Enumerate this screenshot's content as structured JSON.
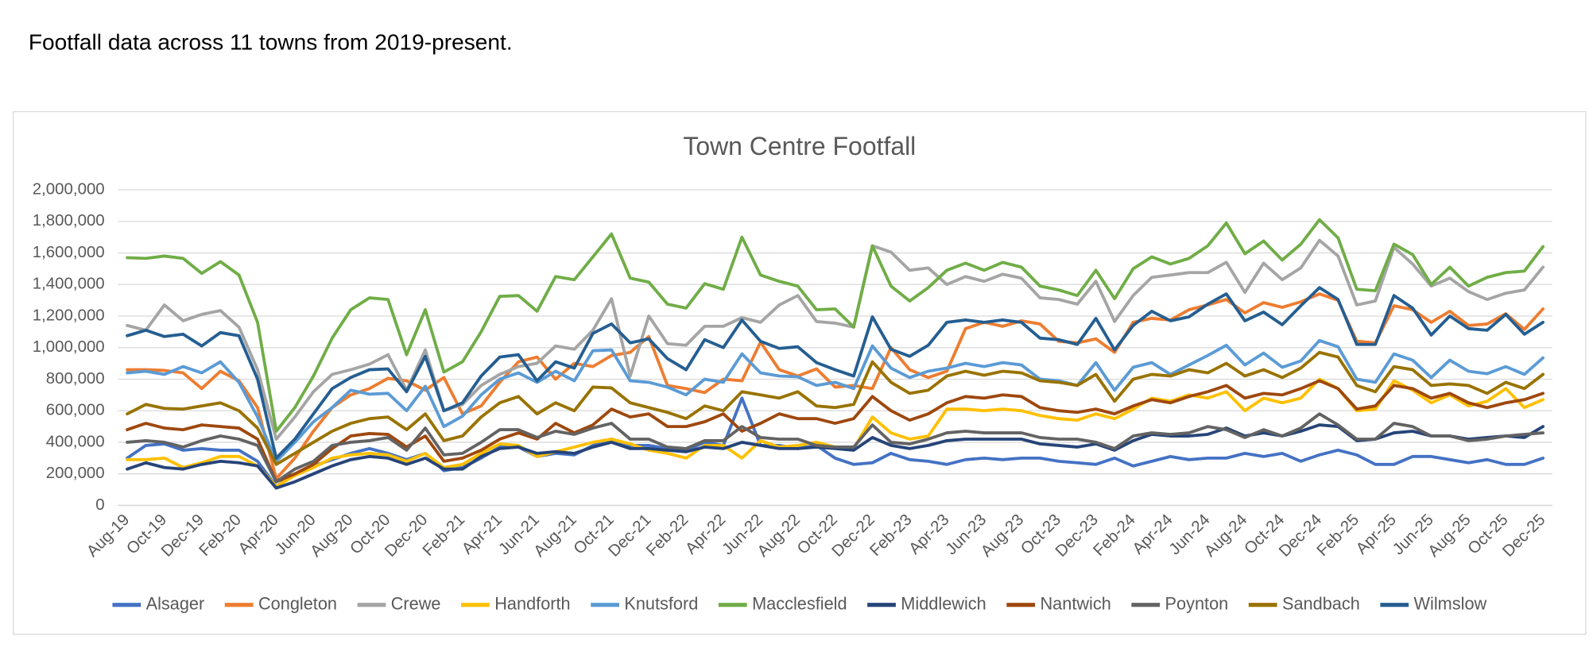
{
  "heading": "Footfall data across 11 towns from 2019-present.",
  "chart_data": {
    "type": "line",
    "title": "Town Centre Footfall",
    "categories": [
      "Aug-19",
      null,
      "Oct-19",
      null,
      "Dec-19",
      null,
      "Feb-20",
      null,
      "Apr-20",
      null,
      "Jun-20",
      null,
      "Aug-20",
      null,
      "Oct-20",
      null,
      "Dec-20",
      null,
      "Feb-21",
      null,
      "Apr-21",
      null,
      "Jun-21",
      null,
      "Aug-21",
      null,
      "Oct-21",
      null,
      "Dec-21",
      null,
      "Feb-22",
      null,
      "Apr-22",
      null,
      "Jun-22",
      null,
      "Aug-22",
      null,
      "Oct-22",
      null,
      "Dec-22",
      null,
      "Feb-23",
      null,
      "Apr-23",
      null,
      "Jun-23",
      null,
      "Aug-23",
      null,
      "Oct-23",
      null,
      "Dec-23",
      null,
      "Feb-24",
      null,
      "Apr-24",
      null,
      "Jun-24",
      null,
      "Aug-24",
      null,
      "Oct-24",
      null,
      "Dec-24",
      null,
      "Feb-25",
      null,
      "Apr-25",
      null,
      "Jun-25",
      null,
      "Aug-25",
      null,
      "Oct-25",
      null,
      "Dec-25"
    ],
    "ylim": [
      0,
      2000000
    ],
    "yticks": [
      0,
      {
        "value": 200000,
        "label": "200,000"
      },
      {
        "value": 400000,
        "label": "400,000"
      },
      {
        "value": 600000,
        "label": "600,000"
      },
      {
        "value": 800000,
        "label": "800,000"
      },
      {
        "value": 1000000,
        "label": "1,000,000"
      },
      {
        "value": 1200000,
        "label": "1,200,000"
      },
      {
        "value": 1400000,
        "label": "1,400,000"
      },
      {
        "value": 1600000,
        "label": "1,600,000"
      },
      {
        "value": 1800000,
        "label": "1,800,000"
      },
      {
        "value": 2000000,
        "label": "2,000,000"
      }
    ],
    "grid": true,
    "legend": "bottom",
    "series": [
      {
        "name": "Alsager",
        "color": "#4472c4",
        "values": [
          300000,
          380000,
          390000,
          350000,
          360000,
          350000,
          350000,
          280000,
          120000,
          200000,
          250000,
          290000,
          330000,
          360000,
          330000,
          290000,
          330000,
          220000,
          240000,
          300000,
          370000,
          370000,
          310000,
          330000,
          320000,
          380000,
          420000,
          380000,
          380000,
          360000,
          350000,
          400000,
          380000,
          680000,
          380000,
          380000,
          360000,
          380000,
          300000,
          260000,
          270000,
          330000,
          290000,
          280000,
          260000,
          290000,
          300000,
          290000,
          300000,
          300000,
          280000,
          270000,
          260000,
          300000,
          250000,
          280000,
          310000,
          290000,
          300000,
          300000,
          330000,
          310000,
          330000,
          280000,
          320000,
          350000,
          320000,
          260000,
          260000,
          310000,
          310000,
          290000,
          270000,
          290000,
          260000,
          260000,
          300000
        ]
      },
      {
        "name": "Congleton",
        "color": "#ed7d31",
        "values": [
          860000,
          860000,
          855000,
          840000,
          740000,
          850000,
          790000,
          620000,
          170000,
          300000,
          470000,
          620000,
          700000,
          740000,
          805000,
          790000,
          730000,
          810000,
          580000,
          630000,
          780000,
          910000,
          940000,
          800000,
          900000,
          880000,
          950000,
          970000,
          1070000,
          760000,
          740000,
          715000,
          800000,
          790000,
          1035000,
          860000,
          820000,
          865000,
          750000,
          760000,
          740000,
          1000000,
          860000,
          810000,
          850000,
          1120000,
          1160000,
          1135000,
          1170000,
          1150000,
          1040000,
          1030000,
          1055000,
          970000,
          1160000,
          1185000,
          1175000,
          1240000,
          1270000,
          1305000,
          1220000,
          1285000,
          1255000,
          1290000,
          1340000,
          1300000,
          1040000,
          1030000,
          1265000,
          1240000,
          1160000,
          1230000,
          1140000,
          1150000,
          1215000,
          1115000,
          1245000
        ]
      },
      {
        "name": "Crewe",
        "color": "#a5a5a5",
        "values": [
          1140000,
          1110000,
          1270000,
          1170000,
          1210000,
          1235000,
          1130000,
          860000,
          420000,
          560000,
          720000,
          830000,
          860000,
          895000,
          955000,
          730000,
          985000,
          600000,
          640000,
          760000,
          830000,
          880000,
          900000,
          1010000,
          990000,
          1110000,
          1310000,
          820000,
          1200000,
          1025000,
          1015000,
          1135000,
          1135000,
          1190000,
          1160000,
          1270000,
          1330000,
          1165000,
          1155000,
          1130000,
          1645000,
          1605000,
          1490000,
          1505000,
          1400000,
          1450000,
          1420000,
          1465000,
          1440000,
          1315000,
          1305000,
          1275000,
          1420000,
          1165000,
          1330000,
          1445000,
          1460000,
          1475000,
          1475000,
          1540000,
          1350000,
          1535000,
          1430000,
          1505000,
          1680000,
          1580000,
          1270000,
          1295000,
          1635000,
          1530000,
          1390000,
          1440000,
          1355000,
          1305000,
          1345000,
          1365000,
          1510000
        ]
      },
      {
        "name": "Handforth",
        "color": "#ffc000",
        "values": [
          290000,
          290000,
          300000,
          240000,
          270000,
          310000,
          310000,
          250000,
          120000,
          190000,
          240000,
          300000,
          320000,
          330000,
          320000,
          280000,
          330000,
          240000,
          260000,
          330000,
          390000,
          380000,
          310000,
          340000,
          370000,
          400000,
          420000,
          390000,
          350000,
          330000,
          300000,
          380000,
          380000,
          300000,
          410000,
          370000,
          380000,
          400000,
          370000,
          360000,
          560000,
          460000,
          420000,
          440000,
          610000,
          610000,
          600000,
          610000,
          600000,
          570000,
          550000,
          540000,
          580000,
          550000,
          610000,
          680000,
          660000,
          700000,
          680000,
          720000,
          600000,
          680000,
          650000,
          680000,
          800000,
          740000,
          600000,
          610000,
          790000,
          730000,
          650000,
          700000,
          630000,
          660000,
          740000,
          620000,
          670000
        ]
      },
      {
        "name": "Knutsford",
        "color": "#5b9bd5",
        "values": [
          840000,
          850000,
          830000,
          880000,
          840000,
          910000,
          780000,
          560000,
          280000,
          400000,
          530000,
          620000,
          730000,
          705000,
          710000,
          600000,
          755000,
          500000,
          565000,
          700000,
          800000,
          840000,
          780000,
          850000,
          790000,
          980000,
          985000,
          790000,
          780000,
          750000,
          700000,
          800000,
          780000,
          960000,
          840000,
          820000,
          815000,
          760000,
          780000,
          740000,
          1010000,
          870000,
          810000,
          850000,
          870000,
          900000,
          880000,
          905000,
          890000,
          800000,
          790000,
          760000,
          905000,
          730000,
          875000,
          905000,
          830000,
          890000,
          950000,
          1015000,
          890000,
          965000,
          875000,
          915000,
          1045000,
          1005000,
          800000,
          780000,
          960000,
          920000,
          810000,
          920000,
          850000,
          835000,
          880000,
          830000,
          935000
        ]
      },
      {
        "name": "Macclesfield",
        "color": "#70ad47",
        "values": [
          1570000,
          1565000,
          1580000,
          1565000,
          1470000,
          1545000,
          1460000,
          1160000,
          470000,
          620000,
          820000,
          1060000,
          1240000,
          1315000,
          1305000,
          955000,
          1240000,
          845000,
          910000,
          1100000,
          1325000,
          1330000,
          1230000,
          1450000,
          1430000,
          1575000,
          1720000,
          1440000,
          1415000,
          1275000,
          1250000,
          1405000,
          1370000,
          1700000,
          1460000,
          1420000,
          1390000,
          1240000,
          1245000,
          1130000,
          1645000,
          1390000,
          1295000,
          1380000,
          1490000,
          1535000,
          1490000,
          1540000,
          1510000,
          1390000,
          1365000,
          1330000,
          1490000,
          1310000,
          1500000,
          1575000,
          1530000,
          1565000,
          1645000,
          1790000,
          1595000,
          1675000,
          1555000,
          1655000,
          1810000,
          1695000,
          1370000,
          1360000,
          1655000,
          1590000,
          1400000,
          1510000,
          1390000,
          1445000,
          1475000,
          1485000,
          1640000
        ]
      },
      {
        "name": "Middlewich",
        "color": "#264478",
        "values": [
          230000,
          270000,
          240000,
          230000,
          260000,
          280000,
          270000,
          250000,
          110000,
          150000,
          200000,
          250000,
          290000,
          310000,
          300000,
          260000,
          300000,
          230000,
          230000,
          310000,
          360000,
          370000,
          330000,
          340000,
          330000,
          370000,
          400000,
          360000,
          360000,
          350000,
          340000,
          370000,
          360000,
          400000,
          380000,
          360000,
          360000,
          370000,
          360000,
          350000,
          430000,
          380000,
          360000,
          380000,
          410000,
          420000,
          420000,
          420000,
          420000,
          390000,
          380000,
          370000,
          390000,
          350000,
          410000,
          450000,
          440000,
          440000,
          450000,
          490000,
          440000,
          460000,
          440000,
          470000,
          510000,
          500000,
          410000,
          420000,
          460000,
          470000,
          440000,
          440000,
          420000,
          430000,
          440000,
          430000,
          500000
        ]
      },
      {
        "name": "Nantwich",
        "color": "#9e480e",
        "values": [
          480000,
          520000,
          490000,
          480000,
          510000,
          500000,
          490000,
          420000,
          150000,
          200000,
          260000,
          360000,
          440000,
          455000,
          450000,
          370000,
          440000,
          280000,
          300000,
          350000,
          420000,
          460000,
          420000,
          520000,
          460000,
          510000,
          610000,
          560000,
          580000,
          500000,
          500000,
          530000,
          580000,
          470000,
          520000,
          580000,
          550000,
          550000,
          520000,
          550000,
          690000,
          600000,
          540000,
          580000,
          650000,
          690000,
          680000,
          700000,
          690000,
          620000,
          600000,
          590000,
          610000,
          580000,
          630000,
          670000,
          650000,
          690000,
          720000,
          760000,
          680000,
          710000,
          700000,
          740000,
          790000,
          740000,
          610000,
          630000,
          760000,
          740000,
          680000,
          710000,
          650000,
          620000,
          650000,
          670000,
          710000
        ]
      },
      {
        "name": "Poynton",
        "color": "#636363",
        "values": [
          400000,
          410000,
          400000,
          370000,
          410000,
          440000,
          420000,
          380000,
          150000,
          230000,
          280000,
          380000,
          400000,
          410000,
          430000,
          350000,
          490000,
          320000,
          330000,
          400000,
          480000,
          480000,
          430000,
          470000,
          450000,
          490000,
          520000,
          420000,
          420000,
          370000,
          360000,
          410000,
          410000,
          500000,
          430000,
          420000,
          420000,
          380000,
          370000,
          370000,
          510000,
          400000,
          390000,
          420000,
          460000,
          470000,
          460000,
          460000,
          460000,
          430000,
          420000,
          420000,
          400000,
          360000,
          440000,
          460000,
          450000,
          460000,
          500000,
          480000,
          430000,
          480000,
          440000,
          490000,
          580000,
          510000,
          420000,
          420000,
          520000,
          500000,
          440000,
          440000,
          410000,
          420000,
          440000,
          450000,
          460000
        ]
      },
      {
        "name": "Sandbach",
        "color": "#997300",
        "values": [
          580000,
          640000,
          615000,
          610000,
          630000,
          650000,
          600000,
          490000,
          260000,
          330000,
          400000,
          470000,
          520000,
          550000,
          560000,
          480000,
          580000,
          410000,
          440000,
          560000,
          650000,
          690000,
          580000,
          650000,
          600000,
          750000,
          745000,
          650000,
          620000,
          590000,
          550000,
          630000,
          600000,
          720000,
          700000,
          680000,
          720000,
          630000,
          620000,
          640000,
          910000,
          780000,
          710000,
          730000,
          820000,
          850000,
          825000,
          850000,
          840000,
          790000,
          780000,
          760000,
          830000,
          660000,
          800000,
          830000,
          820000,
          860000,
          840000,
          900000,
          820000,
          860000,
          810000,
          870000,
          970000,
          940000,
          760000,
          720000,
          880000,
          860000,
          760000,
          770000,
          760000,
          710000,
          780000,
          740000,
          830000
        ]
      },
      {
        "name": "Wilmslow",
        "color": "#255e91",
        "values": [
          1075000,
          1110000,
          1070000,
          1085000,
          1010000,
          1095000,
          1075000,
          800000,
          300000,
          420000,
          580000,
          740000,
          810000,
          860000,
          865000,
          720000,
          945000,
          600000,
          650000,
          820000,
          940000,
          955000,
          790000,
          910000,
          870000,
          1090000,
          1150000,
          1030000,
          1055000,
          930000,
          860000,
          1050000,
          1000000,
          1175000,
          1040000,
          995000,
          1005000,
          905000,
          860000,
          820000,
          1195000,
          990000,
          945000,
          1015000,
          1160000,
          1175000,
          1160000,
          1175000,
          1160000,
          1060000,
          1050000,
          1020000,
          1185000,
          985000,
          1140000,
          1230000,
          1170000,
          1195000,
          1275000,
          1340000,
          1170000,
          1225000,
          1145000,
          1265000,
          1380000,
          1305000,
          1020000,
          1020000,
          1330000,
          1250000,
          1080000,
          1200000,
          1120000,
          1110000,
          1210000,
          1085000,
          1160000
        ]
      }
    ]
  }
}
